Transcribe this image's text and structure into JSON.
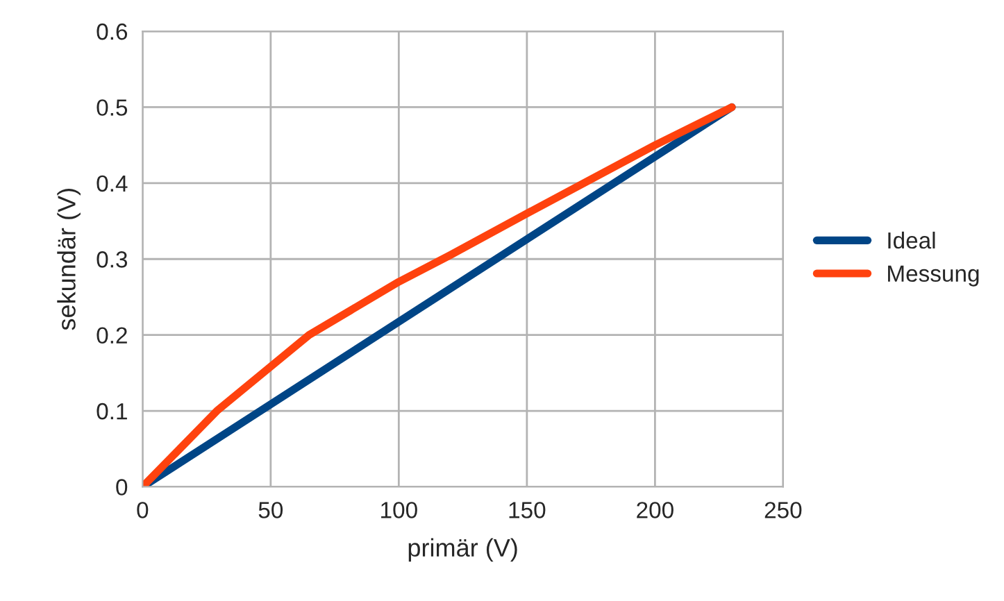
{
  "chart_data": {
    "type": "line",
    "xlabel": "primär (V)",
    "ylabel": "sekundär (V)",
    "xlim": [
      0,
      250
    ],
    "xticks": [
      0,
      50,
      100,
      150,
      200,
      250
    ],
    "ylim": [
      0,
      0.6
    ],
    "yticks": [
      0,
      0.1,
      0.2,
      0.3,
      0.4,
      0.5,
      0.6
    ],
    "grid": true,
    "legend": "right",
    "marker": "none",
    "series": [
      {
        "name": "Ideal",
        "color": "#004586",
        "x": [
          0,
          230
        ],
        "values": [
          0,
          0.5
        ]
      },
      {
        "name": "Messung",
        "color": "#ff420e",
        "x": [
          0,
          29,
          65,
          100,
          120,
          150,
          200,
          230
        ],
        "values": [
          0,
          0.1,
          0.2,
          0.27,
          0.305,
          0.36,
          0.45,
          0.5
        ]
      }
    ]
  }
}
